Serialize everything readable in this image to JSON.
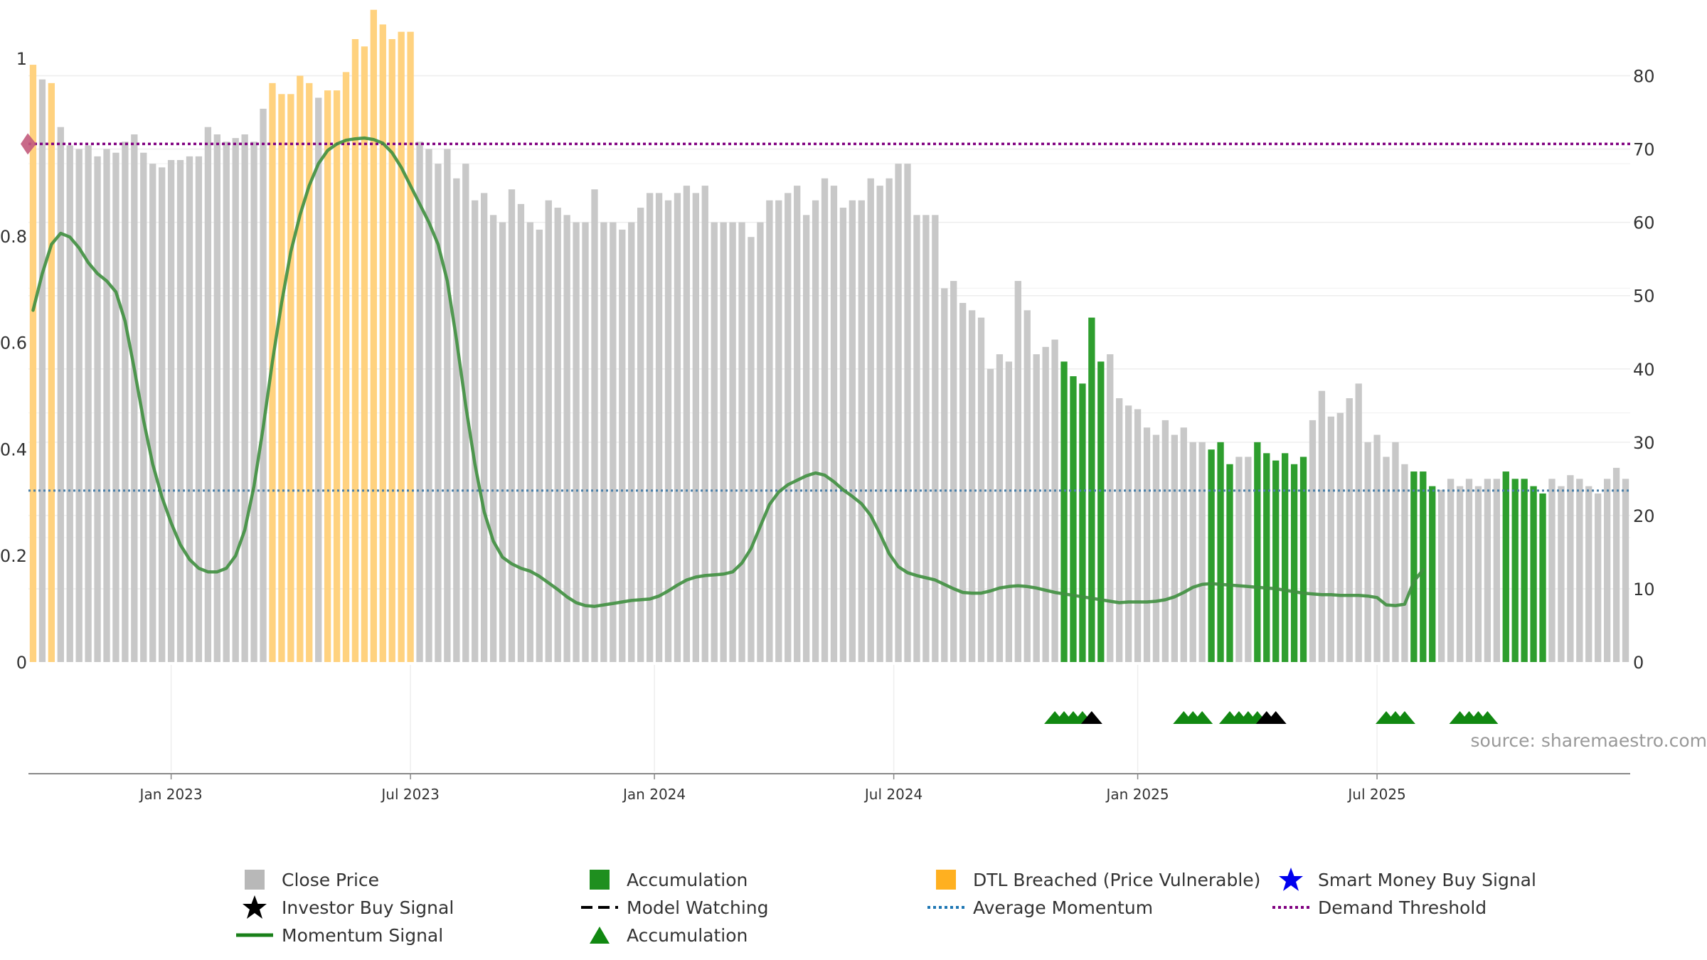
{
  "chart_data": {
    "type": "bar",
    "source": "source: sharemaestro.com",
    "left_axis": {
      "min": 0,
      "max": 1,
      "ticks": [
        "0",
        "0.2",
        "0.4",
        "0.6",
        "0.8",
        "1"
      ]
    },
    "right_axis": {
      "min": 0,
      "max": 85,
      "ticks": [
        "0",
        "10",
        "20",
        "30",
        "40",
        "50",
        "60",
        "70",
        "80"
      ]
    },
    "x_ticks": [
      {
        "label": "Jan 2023",
        "week": 15.5
      },
      {
        "label": "Jul 2023",
        "week": 41.5
      },
      {
        "label": "Jan 2024",
        "week": 68
      },
      {
        "label": "Jul 2024",
        "week": 94
      },
      {
        "label": "Jan 2025",
        "week": 120.5
      },
      {
        "label": "Jul 2025",
        "week": 146.5
      }
    ],
    "demand_threshold": 70.7,
    "average_momentum": 23.4,
    "close_price": [
      81.5,
      79.5,
      79,
      73,
      70.5,
      70,
      70.5,
      69,
      70,
      69.5,
      71,
      72,
      69.5,
      68,
      67.5,
      68.5,
      68.5,
      69,
      69,
      73,
      72,
      71,
      71.5,
      72,
      71,
      75.5,
      79,
      77.5,
      77.5,
      80,
      79,
      77,
      78,
      78,
      80.5,
      85,
      84,
      89,
      87,
      85,
      86,
      86,
      71,
      70,
      68,
      70,
      66,
      68,
      63,
      64,
      61,
      60,
      64.5,
      62.5,
      60,
      59,
      63,
      62,
      61,
      60,
      60,
      64.5,
      60,
      60,
      59,
      60,
      62,
      64,
      64,
      63,
      64,
      65,
      64,
      65,
      60,
      60,
      60,
      60,
      58,
      60,
      63,
      63,
      64,
      65,
      61,
      63,
      66,
      65,
      62,
      63,
      63,
      66,
      65,
      66,
      68,
      68,
      61,
      61,
      61,
      51,
      52,
      49,
      48,
      47,
      40,
      42,
      41,
      52,
      48,
      42,
      43,
      44,
      41,
      39,
      38,
      47,
      41,
      42,
      36,
      35,
      34.5,
      32,
      31,
      33,
      31,
      32,
      30,
      30,
      29,
      30,
      27,
      28,
      28,
      30,
      28.5,
      27.5,
      28.5,
      27,
      28,
      33,
      37,
      33.5,
      34,
      36,
      38,
      30,
      31,
      28,
      30,
      27,
      26,
      26,
      24,
      23.5,
      25,
      24,
      25,
      24,
      25,
      25,
      26,
      25,
      25,
      24,
      23,
      25,
      24,
      25.5,
      25,
      24,
      23,
      25,
      26.5,
      25
    ],
    "bar_category": [
      "y",
      "g",
      "y",
      "g",
      "g",
      "g",
      "g",
      "g",
      "g",
      "g",
      "g",
      "g",
      "g",
      "g",
      "g",
      "g",
      "g",
      "g",
      "g",
      "g",
      "g",
      "g",
      "g",
      "g",
      "g",
      "g",
      "y",
      "y",
      "y",
      "y",
      "y",
      "g",
      "y",
      "y",
      "y",
      "y",
      "y",
      "y",
      "y",
      "y",
      "y",
      "y",
      "g",
      "g",
      "g",
      "g",
      "g",
      "g",
      "g",
      "g",
      "g",
      "g",
      "g",
      "g",
      "g",
      "g",
      "g",
      "g",
      "g",
      "g",
      "g",
      "g",
      "g",
      "g",
      "g",
      "g",
      "g",
      "g",
      "g",
      "g",
      "g",
      "g",
      "g",
      "g",
      "g",
      "g",
      "g",
      "g",
      "g",
      "g",
      "g",
      "g",
      "g",
      "g",
      "g",
      "g",
      "g",
      "g",
      "g",
      "g",
      "g",
      "g",
      "g",
      "g",
      "g",
      "g",
      "g",
      "g",
      "g",
      "g",
      "g",
      "g",
      "g",
      "g",
      "g",
      "g",
      "g",
      "g",
      "g",
      "g",
      "g",
      "g",
      "G",
      "G",
      "G",
      "G",
      "G",
      "g",
      "g",
      "g",
      "g",
      "g",
      "g",
      "g",
      "g",
      "g",
      "g",
      "g",
      "G",
      "G",
      "G",
      "g",
      "g",
      "G",
      "G",
      "G",
      "G",
      "G",
      "G",
      "g",
      "g",
      "g",
      "g",
      "g",
      "g",
      "g",
      "g",
      "g",
      "g",
      "g",
      "G",
      "G",
      "G",
      "g",
      "g",
      "g",
      "g",
      "g",
      "g",
      "g",
      "G",
      "G",
      "G",
      "G",
      "G"
    ],
    "momentum": [
      48,
      53,
      57,
      58.5,
      58,
      56.5,
      54.5,
      53,
      52,
      50.5,
      46.5,
      40,
      33,
      27,
      22.5,
      19,
      16,
      14,
      12.8,
      12.3,
      12.3,
      12.8,
      14.5,
      18,
      24,
      32,
      41,
      49,
      56,
      61,
      65,
      68,
      69.8,
      70.7,
      71.2,
      71.4,
      71.5,
      71.3,
      70.8,
      69.5,
      67.5,
      65,
      62.5,
      60,
      57,
      52,
      44,
      35,
      27,
      20.5,
      16.5,
      14.3,
      13.4,
      12.8,
      12.4,
      11.7,
      10.8,
      9.9,
      8.9,
      8.1,
      7.7,
      7.6,
      7.8,
      8,
      8.2,
      8.4,
      8.5,
      8.6,
      9,
      9.7,
      10.5,
      11.2,
      11.6,
      11.8,
      11.9,
      12,
      12.3,
      13.5,
      15.5,
      18.5,
      21.5,
      23.2,
      24.2,
      24.8,
      25.4,
      25.8,
      25.5,
      24.6,
      23.5,
      22.6,
      21.6,
      20,
      17.5,
      14.8,
      13,
      12.2,
      11.8,
      11.5,
      11.2,
      10.6,
      10,
      9.5,
      9.4,
      9.4,
      9.7,
      10.1,
      10.3,
      10.4,
      10.3,
      10.1,
      9.8,
      9.5,
      9.3,
      9.1,
      8.9,
      8.7,
      8.5,
      8.3,
      8.1,
      8.2,
      8.2,
      8.2,
      8.3,
      8.5,
      8.9,
      9.5,
      10.2,
      10.6,
      10.7,
      10.6,
      10.5,
      10.4,
      10.3,
      10.2,
      10.1,
      10,
      9.8,
      9.6,
      9.4,
      9.3,
      9.2,
      9.2,
      9.1,
      9.1,
      9.1,
      9,
      8.8,
      7.8,
      7.7,
      7.9,
      11,
      12.6
    ],
    "signals": [
      {
        "week": 111.5,
        "type": "accumulation"
      },
      {
        "week": 112.5,
        "type": "accumulation"
      },
      {
        "week": 113.5,
        "type": "accumulation"
      },
      {
        "week": 114.5,
        "type": "accumulation"
      },
      {
        "week": 115.5,
        "type": "investor"
      },
      {
        "week": 125.5,
        "type": "accumulation"
      },
      {
        "week": 126.5,
        "type": "accumulation"
      },
      {
        "week": 127.5,
        "type": "accumulation"
      },
      {
        "week": 130.5,
        "type": "accumulation"
      },
      {
        "week": 131.5,
        "type": "accumulation"
      },
      {
        "week": 132.5,
        "type": "accumulation"
      },
      {
        "week": 133.5,
        "type": "accumulation"
      },
      {
        "week": 134.5,
        "type": "investor"
      },
      {
        "week": 135.5,
        "type": "investor"
      },
      {
        "week": 147.5,
        "type": "accumulation"
      },
      {
        "week": 148.5,
        "type": "accumulation"
      },
      {
        "week": 149.5,
        "type": "accumulation"
      },
      {
        "week": 155.5,
        "type": "accumulation"
      },
      {
        "week": 156.5,
        "type": "accumulation"
      },
      {
        "week": 157.5,
        "type": "accumulation"
      },
      {
        "week": 158.5,
        "type": "accumulation"
      }
    ],
    "colors": {
      "close": "#c8c8c8",
      "accumulation_bar": "#2e9e2e",
      "breached": "#ffd27f",
      "momentum": "#3f8f3f",
      "momentum_legend": "#1a801a",
      "demand": "#800080",
      "average": "#4a7fa8",
      "investor": "#000000",
      "smart_money": "#0000ee",
      "accumulation_marker": "#118811",
      "axis_text": "#333333",
      "grid": "#eeeeee",
      "source": "#999999",
      "start_marker": "#c25a7c"
    },
    "legend": [
      {
        "label": "Close Price",
        "icon": "square-icon",
        "color": "#b8b8b8"
      },
      {
        "label": "Accumulation",
        "icon": "square-icon",
        "color": "#1f8f1f"
      },
      {
        "label": "DTL Breached (Price Vulnerable)",
        "icon": "square-icon",
        "color": "#ffb020"
      },
      {
        "label": "Smart Money Buy Signal",
        "icon": "star-icon",
        "color": "#0000ee"
      },
      {
        "label": "Investor Buy Signal",
        "icon": "star-icon",
        "color": "#000000"
      },
      {
        "label": "Model Watching",
        "icon": "dash-icon",
        "color": "#000000"
      },
      {
        "label": "Average Momentum",
        "icon": "dotted-line-icon",
        "color": "#1f77b4"
      },
      {
        "label": "Demand Threshold",
        "icon": "dotted-line-icon",
        "color": "#800080"
      },
      {
        "label": "Momentum Signal",
        "icon": "solid-line-icon",
        "color": "#1a801a"
      },
      {
        "label": "Accumulation",
        "icon": "triangle-icon",
        "color": "#118811"
      }
    ]
  }
}
